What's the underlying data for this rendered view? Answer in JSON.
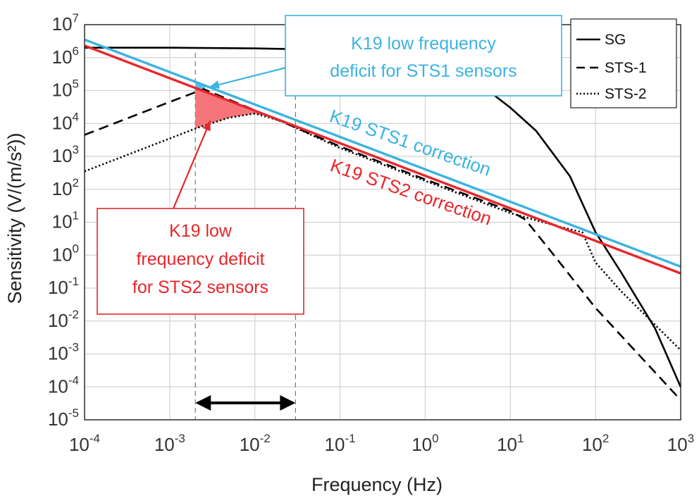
{
  "chart_data": {
    "type": "line",
    "xlabel": "Frequency (Hz)",
    "ylabel": "Sensitivity (V/(m/s²))",
    "xscale": "log",
    "yscale": "log",
    "xlim": [
      0.0001,
      1000
    ],
    "ylim": [
      1e-05,
      10000000
    ],
    "grid": true,
    "legend_position": "top-right",
    "x_ticks": [
      {
        "base": "10",
        "exp": "-4",
        "value": 0.0001
      },
      {
        "base": "10",
        "exp": "-3",
        "value": 0.001
      },
      {
        "base": "10",
        "exp": "-2",
        "value": 0.01
      },
      {
        "base": "10",
        "exp": "-1",
        "value": 0.1
      },
      {
        "base": "10",
        "exp": "0",
        "value": 1
      },
      {
        "base": "10",
        "exp": "1",
        "value": 10
      },
      {
        "base": "10",
        "exp": "2",
        "value": 100
      },
      {
        "base": "10",
        "exp": "3",
        "value": 1000
      }
    ],
    "y_ticks": [
      {
        "base": "10",
        "exp": "-5",
        "value": 1e-05
      },
      {
        "base": "10",
        "exp": "-4",
        "value": 0.0001
      },
      {
        "base": "10",
        "exp": "-3",
        "value": 0.001
      },
      {
        "base": "10",
        "exp": "-2",
        "value": 0.01
      },
      {
        "base": "10",
        "exp": "-1",
        "value": 0.1
      },
      {
        "base": "10",
        "exp": "0",
        "value": 1
      },
      {
        "base": "10",
        "exp": "1",
        "value": 10
      },
      {
        "base": "10",
        "exp": "2",
        "value": 100
      },
      {
        "base": "10",
        "exp": "3",
        "value": 1000
      },
      {
        "base": "10",
        "exp": "4",
        "value": 10000
      },
      {
        "base": "10",
        "exp": "5",
        "value": 100000
      },
      {
        "base": "10",
        "exp": "6",
        "value": 1000000
      },
      {
        "base": "10",
        "exp": "7",
        "value": 10000000
      }
    ],
    "series": [
      {
        "name": "SG",
        "style": "solid",
        "color": "#000000",
        "x": [
          0.0001,
          0.001,
          0.01,
          0.1,
          0.3,
          1,
          2,
          5,
          10,
          20,
          50,
          100,
          200,
          500,
          1000
        ],
        "y": [
          2000000,
          2000000,
          1900000,
          1700000,
          1300000,
          700000,
          400000,
          120000,
          30000,
          6000,
          250,
          5,
          0.3,
          0.006,
          0.0001
        ]
      },
      {
        "name": "STS-1",
        "style": "dashed",
        "color": "#000000",
        "x": [
          0.0001,
          0.001,
          0.0025,
          0.01,
          0.1,
          1,
          10,
          15,
          30,
          100,
          1000
        ],
        "y": [
          4500,
          45000,
          110000,
          25000,
          2000,
          200,
          22,
          12,
          1.3,
          0.025,
          4e-05
        ]
      },
      {
        "name": "STS-2",
        "style": "dotted",
        "color": "#000000",
        "x": [
          0.0001,
          0.001,
          0.002,
          0.005,
          0.01,
          0.02,
          0.1,
          1,
          10,
          40,
          70,
          100,
          200,
          1000
        ],
        "y": [
          350,
          3500,
          7000,
          15000,
          20000,
          12000,
          1800,
          180,
          19,
          7,
          5,
          0.6,
          0.08,
          0.0013
        ]
      },
      {
        "name": "K19 STS1 correction",
        "style": "solid",
        "color": "#3BB3E0",
        "x": [
          0.0001,
          1000
        ],
        "y": [
          3500000,
          0.45
        ]
      },
      {
        "name": "K19 STS2 correction",
        "style": "solid",
        "color": "#E8262B",
        "x": [
          0.0001,
          1000
        ],
        "y": [
          2300000,
          0.28
        ]
      }
    ],
    "annotations": [
      {
        "id": "sts1_box",
        "text_lines": [
          "K19 low frequency",
          "deficit for STS1 sensors"
        ],
        "color": "#3BB3E0",
        "arrow_to": {
          "x": 0.0025,
          "y": 140000
        }
      },
      {
        "id": "sts2_box",
        "text_lines": [
          "K19 low",
          "frequency deficit",
          "for STS2 sensors"
        ],
        "color": "#E8262B",
        "arrow_to": {
          "x": 0.003,
          "y": 20000
        }
      },
      {
        "id": "sts1_line_label",
        "text": "K19 STS1 correction",
        "color": "#3BB3E0"
      },
      {
        "id": "sts2_line_label",
        "text": "K19 STS2 correction",
        "color": "#E8262B"
      }
    ],
    "band": {
      "x_from": 0.002,
      "x_to": 0.03
    },
    "deficit_regions": [
      {
        "color": "#3BB3E0",
        "x_from": 0.002,
        "x_to": 0.0026
      },
      {
        "color": "#F5666B",
        "x_from": 0.002,
        "x_to": 0.012
      }
    ]
  }
}
